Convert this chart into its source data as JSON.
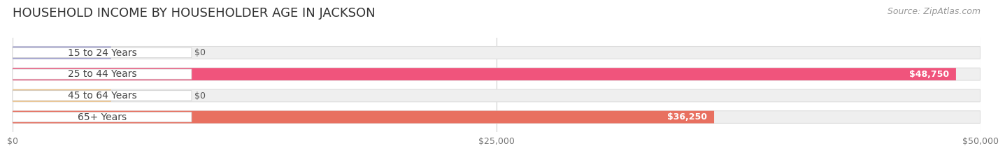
{
  "title": "HOUSEHOLD INCOME BY HOUSEHOLDER AGE IN JACKSON",
  "source": "Source: ZipAtlas.com",
  "categories": [
    "15 to 24 Years",
    "25 to 44 Years",
    "45 to 64 Years",
    "65+ Years"
  ],
  "values": [
    0,
    48750,
    0,
    36250
  ],
  "bar_colors": [
    "#a0a0d0",
    "#f0547c",
    "#f0c080",
    "#e87060"
  ],
  "bar_bg_color": "#efefef",
  "bar_border_color": "#dddddd",
  "xlim": [
    0,
    50000
  ],
  "xticks": [
    0,
    25000,
    50000
  ],
  "xtick_labels": [
    "$0",
    "$25,000",
    "$50,000"
  ],
  "value_labels": [
    "$0",
    "$48,750",
    "$0",
    "$36,250"
  ],
  "background_color": "#ffffff",
  "title_fontsize": 13,
  "source_fontsize": 9,
  "label_fontsize": 10,
  "value_fontsize": 9,
  "bar_height": 0.58,
  "figsize": [
    14.06,
    2.33
  ]
}
